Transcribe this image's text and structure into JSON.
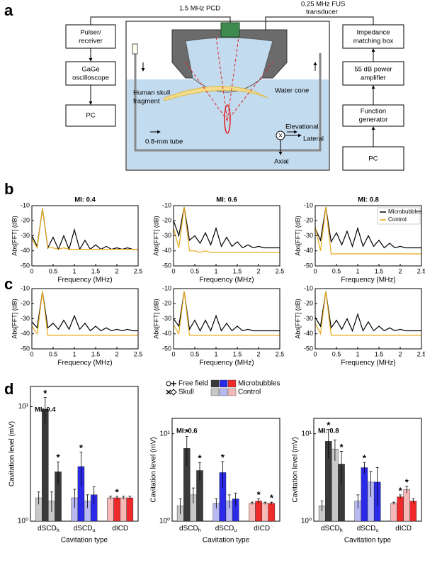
{
  "panel_labels": [
    "a",
    "b",
    "c",
    "d"
  ],
  "diagram": {
    "left_boxes": [
      [
        "Pulser/",
        "receiver"
      ],
      [
        "GaGe",
        "oscilloscope"
      ],
      [
        "PC"
      ]
    ],
    "right_boxes": [
      [
        "Impedance",
        "matching box"
      ],
      [
        "55 dB power",
        "amplifier"
      ],
      [
        "Function",
        "generator"
      ],
      [
        "PC"
      ]
    ],
    "pcd": "1.5 MHz PCD",
    "transducer": [
      "0.25 MHz FUS",
      "transducer"
    ],
    "skull": [
      "Human skull",
      "fragment"
    ],
    "cone": "Water cone",
    "tube": "0.8-mm tube",
    "elevational": "Elevational",
    "lateral": "Lateral",
    "axial": "Axial",
    "cross": "x"
  },
  "bar_legend": {
    "locations": [
      "Free field",
      "Skull"
    ],
    "conditions": [
      "Microbubbles",
      "Control"
    ]
  },
  "chart_data": [
    {
      "type": "line",
      "title": "MI: 0.4",
      "xlabel": "Frequency (MHz)",
      "ylabel": "Abs[FFT] (dB)",
      "xlim": [
        0,
        2.5
      ],
      "xticks": [
        0,
        0.5,
        1,
        1.5,
        2,
        2.5
      ],
      "ylim": [
        -50,
        -10
      ],
      "yticks": [
        -50,
        -40,
        -30,
        -20,
        -10
      ],
      "x": [
        0,
        0.125,
        0.25,
        0.375,
        0.5,
        0.625,
        0.75,
        0.875,
        1,
        1.125,
        1.25,
        1.375,
        1.5,
        1.625,
        1.75,
        1.875,
        2,
        2.125,
        2.25,
        2.375,
        2.5
      ],
      "series": [
        {
          "color": "#000000",
          "values": [
            -30,
            -37,
            -12,
            -38,
            -31,
            -39,
            -30,
            -39,
            -26,
            -39,
            -33,
            -39,
            -36,
            -39,
            -37,
            -39,
            -38,
            -39,
            -38,
            -39,
            -39
          ]
        },
        {
          "color": "#e8a91c",
          "values": [
            -32,
            -38,
            -12,
            -38,
            -38,
            -39,
            -38,
            -39,
            -39,
            -39,
            -39,
            -39,
            -39,
            -39,
            -39,
            -39,
            -39,
            -39,
            -39,
            -39,
            -39
          ]
        }
      ]
    },
    {
      "type": "line",
      "title": "MI: 0.6",
      "xlabel": "Frequency (MHz)",
      "ylabel": "Abs[FFT] (dB)",
      "xlim": [
        0,
        2.5
      ],
      "xticks": [
        0,
        0.5,
        1,
        1.5,
        2,
        2.5
      ],
      "ylim": [
        -50,
        -10
      ],
      "yticks": [
        -50,
        -40,
        -30,
        -20,
        -10
      ],
      "x": [
        0,
        0.125,
        0.25,
        0.375,
        0.5,
        0.625,
        0.75,
        0.875,
        1,
        1.125,
        1.25,
        1.375,
        1.5,
        1.625,
        1.75,
        1.875,
        2,
        2.125,
        2.25,
        2.375,
        2.5
      ],
      "series": [
        {
          "color": "#000000",
          "values": [
            -20,
            -30,
            -11,
            -33,
            -30,
            -35,
            -28,
            -36,
            -25,
            -37,
            -31,
            -37,
            -34,
            -38,
            -36,
            -38,
            -37,
            -38,
            -38,
            -38,
            -38
          ]
        },
        {
          "color": "#e8a91c",
          "values": [
            -25,
            -38,
            -11,
            -40,
            -40,
            -41,
            -40,
            -41,
            -41,
            -41,
            -41,
            -41,
            -41,
            -41,
            -41,
            -41,
            -41,
            -41,
            -41,
            -41,
            -41
          ]
        }
      ]
    },
    {
      "type": "line",
      "title": "MI: 0.8",
      "xlabel": "Frequency (MHz)",
      "ylabel": "Abs[FFT] (dB)",
      "xlim": [
        0,
        2.5
      ],
      "xticks": [
        0,
        0.5,
        1,
        1.5,
        2,
        2.5
      ],
      "ylim": [
        -50,
        -10
      ],
      "yticks": [
        -50,
        -40,
        -30,
        -20,
        -10
      ],
      "legend": "upper right",
      "x": [
        0,
        0.125,
        0.25,
        0.375,
        0.5,
        0.625,
        0.75,
        0.875,
        1,
        1.125,
        1.25,
        1.375,
        1.5,
        1.625,
        1.75,
        1.875,
        2,
        2.125,
        2.25,
        2.375,
        2.5
      ],
      "series": [
        {
          "name": "Microbubbles",
          "color": "#000000",
          "values": [
            -25,
            -33,
            -11,
            -34,
            -28,
            -36,
            -27,
            -37,
            -25,
            -37,
            -30,
            -37,
            -33,
            -38,
            -35,
            -38,
            -37,
            -38,
            -38,
            -38,
            -38
          ]
        },
        {
          "name": "Control",
          "color": "#e8a91c",
          "values": [
            -24,
            -40,
            -11,
            -42,
            -42,
            -42,
            -42,
            -42,
            -42,
            -42,
            -42,
            -42,
            -42,
            -42,
            -42,
            -42,
            -42,
            -42,
            -42,
            -42,
            -42
          ]
        }
      ]
    },
    {
      "type": "line",
      "xlabel": "Frequency (MHz)",
      "ylabel": "Abs[FFT] (dB)",
      "xlim": [
        0,
        2.5
      ],
      "xticks": [
        0,
        0.5,
        1,
        1.5,
        2,
        2.5
      ],
      "ylim": [
        -50,
        -10
      ],
      "yticks": [
        -50,
        -40,
        -30,
        -20,
        -10
      ],
      "x": [
        0,
        0.125,
        0.25,
        0.375,
        0.5,
        0.625,
        0.75,
        0.875,
        1,
        1.125,
        1.25,
        1.375,
        1.5,
        1.625,
        1.75,
        1.875,
        2,
        2.125,
        2.25,
        2.375,
        2.5
      ],
      "series": [
        {
          "color": "#000000",
          "values": [
            -32,
            -36,
            -12,
            -36,
            -33,
            -37,
            -31,
            -37,
            -28,
            -37,
            -33,
            -38,
            -35,
            -38,
            -36,
            -38,
            -37,
            -38,
            -37,
            -38,
            -38
          ]
        },
        {
          "color": "#e8a91c",
          "values": [
            -35,
            -40,
            -12,
            -41,
            -41,
            -41,
            -41,
            -41,
            -41,
            -41,
            -41,
            -41,
            -41,
            -41,
            -41,
            -41,
            -41,
            -41,
            -41,
            -41,
            -41
          ]
        }
      ]
    },
    {
      "type": "line",
      "xlabel": "Frequency (MHz)",
      "ylabel": "Abs[FFT] (dB)",
      "xlim": [
        0,
        2.5
      ],
      "xticks": [
        0,
        0.5,
        1,
        1.5,
        2,
        2.5
      ],
      "ylim": [
        -50,
        -10
      ],
      "yticks": [
        -50,
        -40,
        -30,
        -20,
        -10
      ],
      "x": [
        0,
        0.125,
        0.25,
        0.375,
        0.5,
        0.625,
        0.75,
        0.875,
        1,
        1.125,
        1.25,
        1.375,
        1.5,
        1.625,
        1.75,
        1.875,
        2,
        2.125,
        2.25,
        2.375,
        2.5
      ],
      "series": [
        {
          "color": "#000000",
          "values": [
            -30,
            -35,
            -12,
            -37,
            -31,
            -38,
            -31,
            -38,
            -28,
            -38,
            -33,
            -38,
            -35,
            -38,
            -37,
            -38,
            -38,
            -38,
            -38,
            -38,
            -38
          ]
        },
        {
          "color": "#e8a91c",
          "values": [
            -34,
            -40,
            -12,
            -41,
            -41,
            -41,
            -41,
            -41,
            -41,
            -41,
            -41,
            -41,
            -41,
            -41,
            -41,
            -41,
            -41,
            -41,
            -41,
            -41,
            -41
          ]
        }
      ]
    },
    {
      "type": "line",
      "xlabel": "Frequency (MHz)",
      "ylabel": "Abs[FFT] (dB)",
      "xlim": [
        0,
        2.5
      ],
      "xticks": [
        0,
        0.5,
        1,
        1.5,
        2,
        2.5
      ],
      "ylim": [
        -50,
        -10
      ],
      "yticks": [
        -50,
        -40,
        -30,
        -20,
        -10
      ],
      "x": [
        0,
        0.125,
        0.25,
        0.375,
        0.5,
        0.625,
        0.75,
        0.875,
        1,
        1.125,
        1.25,
        1.375,
        1.5,
        1.625,
        1.75,
        1.875,
        2,
        2.125,
        2.25,
        2.375,
        2.5
      ],
      "series": [
        {
          "color": "#000000",
          "values": [
            -29,
            -35,
            -12,
            -36,
            -31,
            -37,
            -30,
            -38,
            -27,
            -38,
            -32,
            -38,
            -35,
            -38,
            -36,
            -38,
            -37,
            -38,
            -38,
            -38,
            -38
          ]
        },
        {
          "color": "#e8a91c",
          "values": [
            -33,
            -40,
            -12,
            -41,
            -41,
            -41,
            -41,
            -41,
            -41,
            -41,
            -41,
            -41,
            -41,
            -41,
            -41,
            -41,
            -41,
            -41,
            -41,
            -41,
            -41
          ]
        }
      ]
    },
    {
      "type": "bar",
      "title": "MI: 0.4",
      "xlabel": "Cavitation type",
      "ylabel": "Cavitation level (mV)",
      "log_y": true,
      "ylim": [
        1,
        15
      ],
      "yticks": [
        {
          "value": 1,
          "label": "10⁰"
        },
        {
          "value": 10,
          "label": "10¹"
        }
      ],
      "star_symbol": "*",
      "star_color": "#2db82d",
      "categories": [
        {
          "label": "dSCD",
          "sub": "h"
        },
        {
          "label": "dSCD",
          "sub": "u"
        },
        {
          "label": "dICD"
        }
      ],
      "series": [
        {
          "location": 0,
          "condition": 1,
          "colors": [
            "#c8c8c8",
            "#b8b8f2",
            "#f7b8b8"
          ],
          "values": [
            1.6,
            1.6,
            1.6
          ],
          "errors": [
            0.2,
            0.3,
            0.05
          ],
          "stars": [
            false,
            false,
            false
          ]
        },
        {
          "location": 0,
          "condition": 0,
          "colors": [
            "#3a3a3a",
            "#2a2ae8",
            "#ef2a2a"
          ],
          "values": [
            9.5,
            3.0,
            1.6
          ],
          "errors": [
            2.5,
            1.0,
            0.05
          ],
          "stars": [
            true,
            true,
            true
          ]
        },
        {
          "location": 1,
          "condition": 1,
          "colors": [
            "#c8c8c8",
            "#b8b8f2",
            "#f7b8b8"
          ],
          "values": [
            1.5,
            1.5,
            1.6
          ],
          "errors": [
            0.3,
            0.2,
            0.05
          ],
          "stars": [
            false,
            false,
            false
          ]
        },
        {
          "location": 1,
          "condition": 0,
          "colors": [
            "#3a3a3a",
            "#2a2ae8",
            "#ef2a2a"
          ],
          "values": [
            2.7,
            1.7,
            1.6
          ],
          "errors": [
            0.6,
            0.3,
            0.05
          ],
          "stars": [
            true,
            false,
            false
          ]
        }
      ]
    },
    {
      "type": "bar",
      "title": "MI: 0.6",
      "xlabel": "Cavitation type",
      "ylabel": "Cavitation level (mV)",
      "log_y": true,
      "ylim": [
        1,
        15
      ],
      "yticks": [
        {
          "value": 1,
          "label": "10⁰"
        },
        {
          "value": 10,
          "label": "10¹"
        }
      ],
      "star_symbol": "*",
      "star_color": "#2db82d",
      "categories": [
        {
          "label": "dSCD",
          "sub": "h"
        },
        {
          "label": "dSCD",
          "sub": "u"
        },
        {
          "label": "dICD"
        }
      ],
      "series": [
        {
          "location": 0,
          "condition": 1,
          "colors": [
            "#c8c8c8",
            "#b8b8f2",
            "#f7b8b8"
          ],
          "values": [
            1.5,
            1.6,
            1.6
          ],
          "errors": [
            0.3,
            0.2,
            0.05
          ],
          "stars": [
            false,
            false,
            false
          ]
        },
        {
          "location": 0,
          "condition": 0,
          "colors": [
            "#3a3a3a",
            "#2a2ae8",
            "#ef2a2a"
          ],
          "values": [
            6.8,
            3.6,
            1.7
          ],
          "errors": [
            2.5,
            1.2,
            0.1
          ],
          "stars": [
            true,
            true,
            true
          ]
        },
        {
          "location": 1,
          "condition": 1,
          "colors": [
            "#c8c8c8",
            "#b8b8f2",
            "#f7b8b8"
          ],
          "values": [
            2.0,
            1.7,
            1.6
          ],
          "errors": [
            0.4,
            0.3,
            0.05
          ],
          "stars": [
            false,
            false,
            false
          ]
        },
        {
          "location": 1,
          "condition": 0,
          "colors": [
            "#3a3a3a",
            "#2a2ae8",
            "#ef2a2a"
          ],
          "values": [
            3.8,
            1.8,
            1.6
          ],
          "errors": [
            0.9,
            0.3,
            0.05
          ],
          "stars": [
            true,
            false,
            true
          ]
        }
      ]
    },
    {
      "type": "bar",
      "title": "MI: 0.8",
      "xlabel": "Cavitation type",
      "ylabel": "Cavitation level (mV)",
      "log_y": true,
      "ylim": [
        1,
        15
      ],
      "yticks": [
        {
          "value": 1,
          "label": "10⁰"
        },
        {
          "value": 10,
          "label": "10¹"
        }
      ],
      "star_symbol": "*",
      "star_color": "#2db82d",
      "categories": [
        {
          "label": "dSCD",
          "sub": "h"
        },
        {
          "label": "dSCD",
          "sub": "u"
        },
        {
          "label": "dICD"
        }
      ],
      "series": [
        {
          "location": 0,
          "condition": 1,
          "colors": [
            "#c8c8c8",
            "#b8b8f2",
            "#f7b8b8"
          ],
          "values": [
            1.5,
            1.7,
            1.6
          ],
          "errors": [
            0.2,
            0.3,
            0.05
          ],
          "stars": [
            false,
            false,
            false
          ]
        },
        {
          "location": 0,
          "condition": 0,
          "colors": [
            "#3a3a3a",
            "#2a2ae8",
            "#ef2a2a"
          ],
          "values": [
            8.2,
            4.1,
            1.9
          ],
          "errors": [
            3.0,
            0.6,
            0.1
          ],
          "stars": [
            true,
            true,
            true
          ]
        },
        {
          "location": 1,
          "condition": 1,
          "colors": [
            "#c8c8c8",
            "#b8b8f2",
            "#f7b8b8"
          ],
          "values": [
            6.7,
            2.8,
            2.3
          ],
          "errors": [
            1.8,
            0.9,
            0.2
          ],
          "stars": [
            false,
            false,
            true
          ]
        },
        {
          "location": 1,
          "condition": 0,
          "colors": [
            "#3a3a3a",
            "#2a2ae8",
            "#ef2a2a"
          ],
          "values": [
            4.5,
            2.8,
            1.7
          ],
          "errors": [
            1.8,
            1.3,
            0.1
          ],
          "stars": [
            true,
            false,
            false
          ]
        }
      ]
    }
  ]
}
